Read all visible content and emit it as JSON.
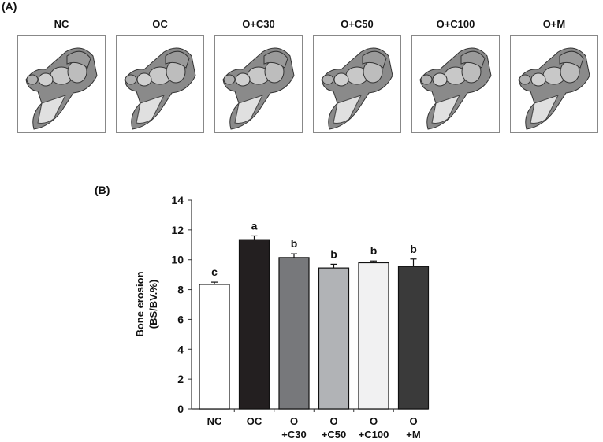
{
  "panel_a": {
    "label": "(A)",
    "images": [
      "NC",
      "OC",
      "O+C30",
      "O+C50",
      "O+C100",
      "O+M"
    ]
  },
  "panel_b": {
    "label": "(B)"
  },
  "chart_data": {
    "type": "bar",
    "categories": [
      [
        "NC"
      ],
      [
        "OC"
      ],
      [
        "O",
        "+C30"
      ],
      [
        "O",
        "+C50"
      ],
      [
        "O",
        "+C100"
      ],
      [
        "O",
        "+M"
      ]
    ],
    "values": [
      8.35,
      11.35,
      10.15,
      9.45,
      9.8,
      9.55
    ],
    "errors": [
      0.15,
      0.25,
      0.25,
      0.25,
      0.12,
      0.5
    ],
    "significance": [
      "c",
      "a",
      "b",
      "b",
      "b",
      "b"
    ],
    "colors": [
      "#ffffff",
      "#231f20",
      "#77787b",
      "#b1b3b6",
      "#f1f1f2",
      "#3a3a3a"
    ],
    "ylabel": [
      "Bone erosion",
      "(BS/BV.%)"
    ],
    "ylim": [
      0,
      14
    ],
    "yticks": [
      0,
      2,
      4,
      6,
      8,
      10,
      12,
      14
    ],
    "grid": false
  }
}
